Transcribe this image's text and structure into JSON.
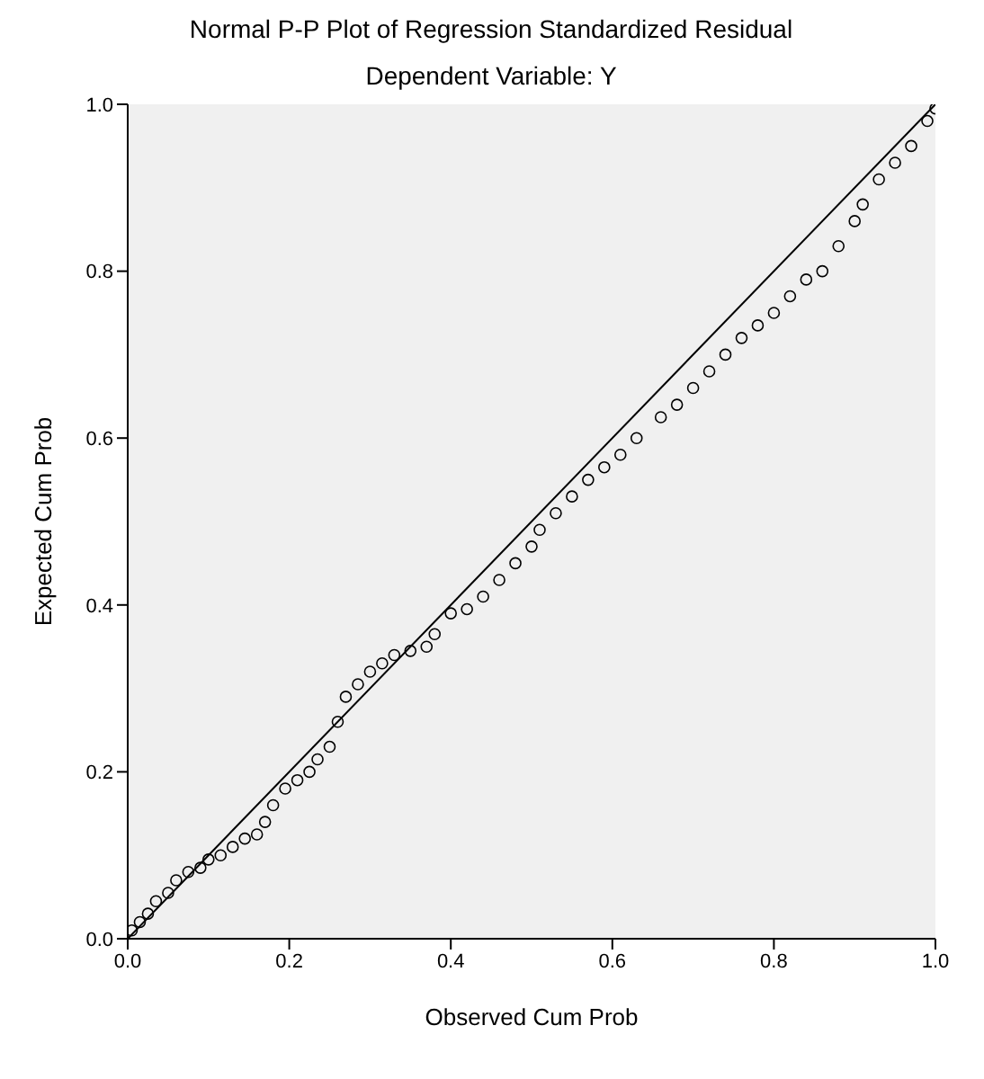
{
  "chart_data": {
    "type": "scatter",
    "title": "Normal P-P Plot of Regression Standardized Residual",
    "subtitle": "Dependent Variable: Y",
    "xlabel": "Observed Cum Prob",
    "ylabel": "Expected Cum Prob",
    "xlim": [
      0,
      1
    ],
    "ylim": [
      0,
      1
    ],
    "xticks": [
      {
        "value": 0,
        "label": "0.0"
      },
      {
        "value": 0.2,
        "label": "0.2"
      },
      {
        "value": 0.4,
        "label": "0.4"
      },
      {
        "value": 0.6,
        "label": "0.6"
      },
      {
        "value": 0.8,
        "label": "0.8"
      },
      {
        "value": 1,
        "label": "1.0"
      }
    ],
    "yticks": [
      {
        "value": 0,
        "label": "0.0"
      },
      {
        "value": 0.2,
        "label": "0.2"
      },
      {
        "value": 0.4,
        "label": "0.4"
      },
      {
        "value": 0.6,
        "label": "0.6"
      },
      {
        "value": 0.8,
        "label": "0.8"
      },
      {
        "value": 1,
        "label": "1.0"
      }
    ],
    "grid": false,
    "legend": false,
    "marker": "circle",
    "series": [
      {
        "color": "#000000",
        "x": [
          0.005,
          0.015,
          0.025,
          0.035,
          0.05,
          0.06,
          0.075,
          0.09,
          0.1,
          0.115,
          0.13,
          0.145,
          0.16,
          0.17,
          0.18,
          0.195,
          0.21,
          0.225,
          0.235,
          0.25,
          0.26,
          0.27,
          0.285,
          0.3,
          0.315,
          0.33,
          0.35,
          0.37,
          0.38,
          0.4,
          0.42,
          0.44,
          0.46,
          0.48,
          0.5,
          0.51,
          0.53,
          0.55,
          0.57,
          0.59,
          0.61,
          0.63,
          0.66,
          0.68,
          0.7,
          0.72,
          0.74,
          0.76,
          0.78,
          0.8,
          0.82,
          0.84,
          0.86,
          0.88,
          0.9,
          0.91,
          0.93,
          0.95,
          0.97,
          0.99,
          1.0
        ],
        "values": [
          0.01,
          0.02,
          0.03,
          0.045,
          0.055,
          0.07,
          0.08,
          0.085,
          0.095,
          0.1,
          0.11,
          0.12,
          0.125,
          0.14,
          0.16,
          0.18,
          0.19,
          0.2,
          0.215,
          0.23,
          0.26,
          0.29,
          0.305,
          0.32,
          0.33,
          0.34,
          0.345,
          0.35,
          0.365,
          0.39,
          0.395,
          0.41,
          0.43,
          0.45,
          0.47,
          0.49,
          0.51,
          0.53,
          0.55,
          0.565,
          0.58,
          0.6,
          0.625,
          0.64,
          0.66,
          0.68,
          0.7,
          0.72,
          0.735,
          0.75,
          0.77,
          0.79,
          0.8,
          0.83,
          0.86,
          0.88,
          0.91,
          0.93,
          0.95,
          0.98,
          0.995
        ]
      },
      {
        "type": "line",
        "color": "#000000",
        "marker": "none",
        "line_style": "solid",
        "x": [
          0,
          1
        ],
        "values": [
          0,
          1
        ]
      }
    ]
  }
}
